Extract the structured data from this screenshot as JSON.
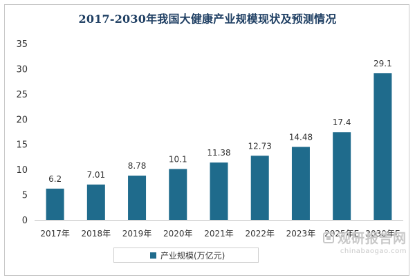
{
  "chart_data": {
    "type": "bar",
    "title": "2017-2030年我国大健康产业规模现状及预测情况",
    "categories": [
      "2017年",
      "2018年",
      "2019年",
      "2020年",
      "2021年",
      "2022年",
      "2023年",
      "2025年E",
      "2030年E"
    ],
    "series": [
      {
        "name": "产业规模(万亿元)",
        "values": [
          6.2,
          7.01,
          8.78,
          10.1,
          11.38,
          12.73,
          14.48,
          17.4,
          29.1
        ]
      }
    ],
    "data_labels": [
      "6.2",
      "7.01",
      "8.78",
      "10.1",
      "11.38",
      "12.73",
      "14.48",
      "17.4",
      "29.1"
    ],
    "y_ticks": [
      0,
      5,
      10,
      15,
      20,
      25,
      30,
      35
    ],
    "ylim": [
      0,
      35
    ],
    "xlabel": "",
    "ylabel": "",
    "grid": false,
    "legend_position": "bottom",
    "bar_color": "#1f6b8c"
  },
  "watermark": {
    "brand": "观研报告网",
    "url": "chinabaogao.com"
  }
}
